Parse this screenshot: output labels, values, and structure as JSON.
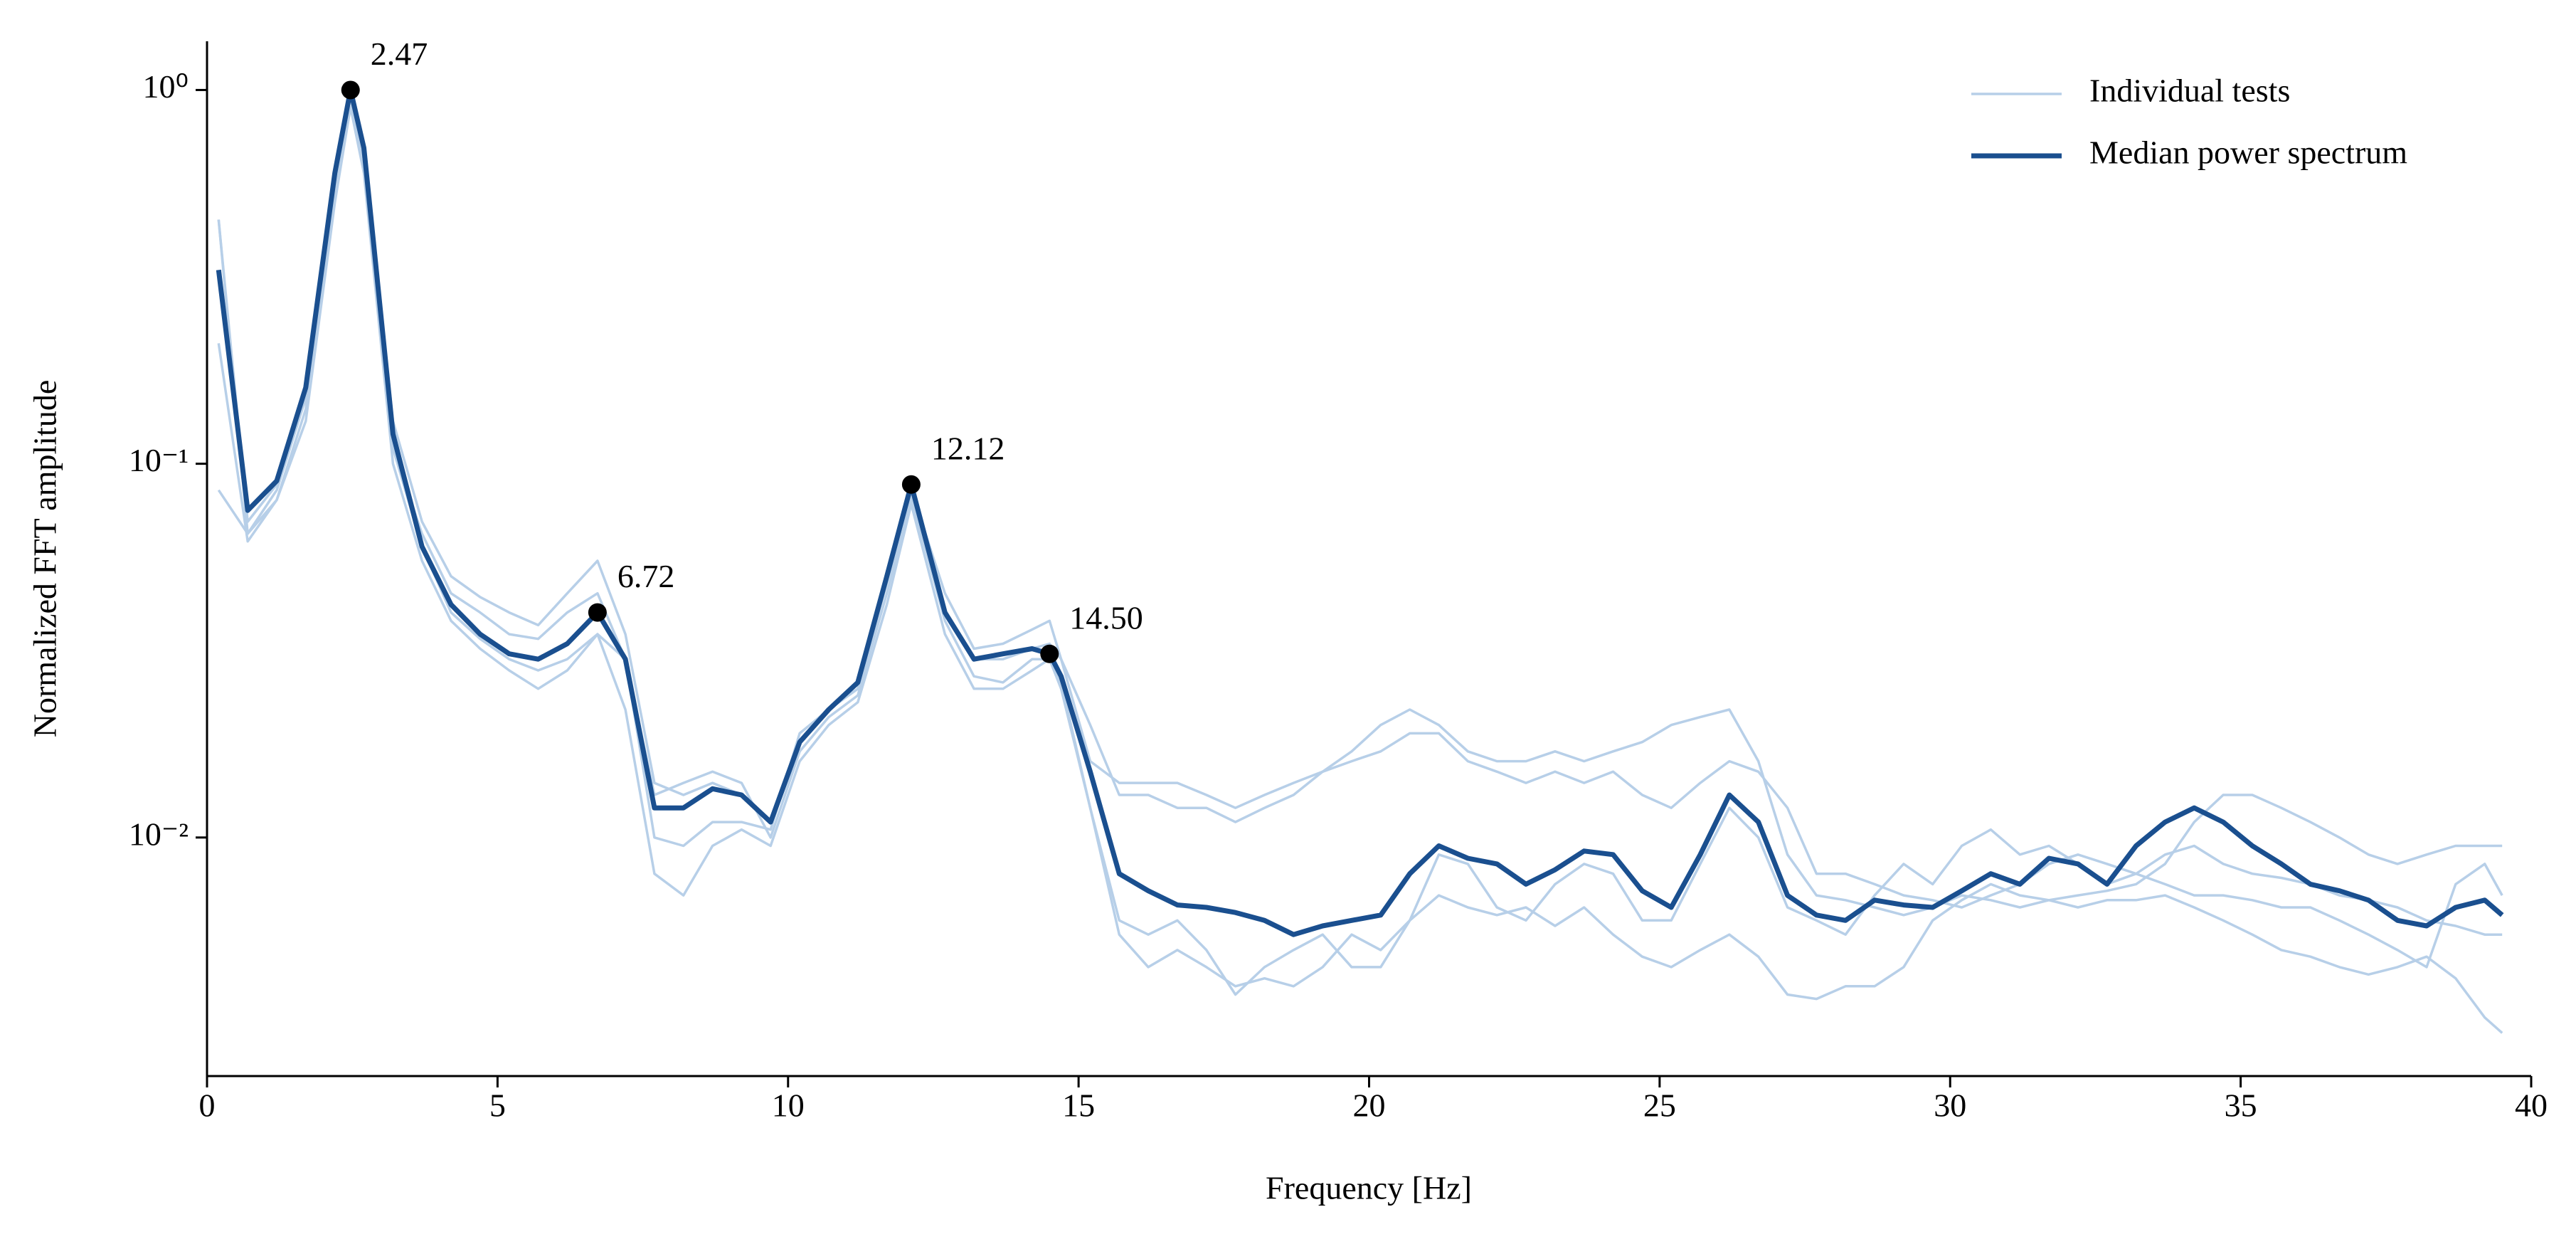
{
  "chart_data": {
    "type": "line",
    "xlabel": "Frequency [Hz]",
    "ylabel": "Normalized FFT amplitude",
    "log_y": true,
    "legend": "upper right",
    "xlim": [
      0,
      40
    ],
    "xticks": [
      0,
      5,
      10,
      15,
      20,
      25,
      30,
      35,
      40
    ],
    "ylim": [
      0.0023,
      1.35
    ],
    "yticks": [
      {
        "value": 1,
        "label": "10⁰"
      },
      {
        "value": 0.1,
        "label": "10⁻¹"
      },
      {
        "value": 0.01,
        "label": "10⁻²"
      }
    ],
    "x": [
      0.2,
      0.7,
      1.2,
      1.7,
      2.2,
      2.47,
      2.7,
      3.2,
      3.7,
      4.2,
      4.7,
      5.2,
      5.7,
      6.2,
      6.72,
      7.2,
      7.7,
      8.2,
      8.7,
      9.2,
      9.7,
      10.2,
      10.7,
      11.2,
      11.7,
      12.12,
      12.7,
      13.2,
      13.7,
      14.2,
      14.5,
      14.7,
      15.2,
      15.7,
      16.2,
      16.7,
      17.2,
      17.7,
      18.2,
      18.7,
      19.2,
      19.7,
      20.2,
      20.7,
      21.2,
      21.7,
      22.2,
      22.7,
      23.2,
      23.7,
      24.2,
      24.7,
      25.2,
      25.7,
      26.2,
      26.7,
      27.2,
      27.7,
      28.2,
      28.7,
      29.2,
      29.7,
      30.2,
      30.7,
      31.2,
      31.7,
      32.2,
      32.7,
      33.2,
      33.7,
      34.2,
      34.7,
      35.2,
      35.7,
      36.2,
      36.7,
      37.2,
      37.7,
      38.2,
      38.7,
      39.2,
      39.5
    ],
    "series": [
      {
        "name": "Individual tests",
        "color": "#b7cfe8",
        "values": [
          [
            0.45,
            0.065,
            0.085,
            0.15,
            0.6,
            1.0,
            0.7,
            0.13,
            0.07,
            0.05,
            0.044,
            0.04,
            0.037,
            0.045,
            0.055,
            0.035,
            0.014,
            0.013,
            0.014,
            0.013,
            0.011,
            0.018,
            0.022,
            0.025,
            0.05,
            0.085,
            0.045,
            0.032,
            0.033,
            0.036,
            0.038,
            0.03,
            0.016,
            0.014,
            0.014,
            0.014,
            0.013,
            0.012,
            0.013,
            0.014,
            0.015,
            0.017,
            0.02,
            0.022,
            0.02,
            0.017,
            0.016,
            0.016,
            0.017,
            0.016,
            0.017,
            0.018,
            0.02,
            0.021,
            0.022,
            0.016,
            0.009,
            0.007,
            0.0068,
            0.0065,
            0.0062,
            0.0065,
            0.007,
            0.0068,
            0.0065,
            0.0068,
            0.007,
            0.0072,
            0.0075,
            0.0085,
            0.011,
            0.013,
            0.013,
            0.012,
            0.011,
            0.01,
            0.009,
            0.0085,
            0.009,
            0.0095,
            0.0095,
            0.0095
          ],
          [
            0.21,
            0.062,
            0.08,
            0.14,
            0.55,
            0.95,
            0.65,
            0.11,
            0.065,
            0.045,
            0.04,
            0.035,
            0.034,
            0.04,
            0.045,
            0.03,
            0.013,
            0.014,
            0.015,
            0.014,
            0.01,
            0.017,
            0.021,
            0.024,
            0.045,
            0.08,
            0.04,
            0.03,
            0.03,
            0.032,
            0.033,
            0.03,
            0.02,
            0.013,
            0.013,
            0.012,
            0.012,
            0.011,
            0.012,
            0.013,
            0.015,
            0.016,
            0.017,
            0.019,
            0.019,
            0.016,
            0.015,
            0.014,
            0.015,
            0.014,
            0.015,
            0.013,
            0.012,
            0.014,
            0.016,
            0.015,
            0.012,
            0.008,
            0.008,
            0.0075,
            0.007,
            0.0068,
            0.0065,
            0.007,
            0.0075,
            0.0085,
            0.009,
            0.0085,
            0.008,
            0.009,
            0.0095,
            0.0085,
            0.008,
            0.0078,
            0.0075,
            0.007,
            0.0068,
            0.0065,
            0.006,
            0.0058,
            0.0055,
            0.0055
          ],
          [
            0.085,
            0.065,
            0.08,
            0.13,
            0.5,
            0.9,
            0.6,
            0.1,
            0.055,
            0.038,
            0.032,
            0.028,
            0.025,
            0.028,
            0.035,
            0.022,
            0.008,
            0.007,
            0.0095,
            0.0105,
            0.0095,
            0.016,
            0.02,
            0.023,
            0.042,
            0.078,
            0.035,
            0.025,
            0.025,
            0.028,
            0.03,
            0.025,
            0.012,
            0.0055,
            0.0045,
            0.005,
            0.0045,
            0.004,
            0.0042,
            0.004,
            0.0045,
            0.0055,
            0.005,
            0.006,
            0.007,
            0.0065,
            0.0062,
            0.0065,
            0.0058,
            0.0065,
            0.0055,
            0.0048,
            0.0045,
            0.005,
            0.0055,
            0.0048,
            0.0038,
            0.0037,
            0.004,
            0.004,
            0.0045,
            0.006,
            0.0068,
            0.0075,
            0.007,
            0.0068,
            0.0065,
            0.0068,
            0.0068,
            0.007,
            0.0065,
            0.006,
            0.0055,
            0.005,
            0.0048,
            0.0045,
            0.0043,
            0.0045,
            0.0048,
            0.0042,
            0.0033,
            0.003
          ],
          [
            0.45,
            0.07,
            0.088,
            0.15,
            0.58,
            0.98,
            0.68,
            0.11,
            0.06,
            0.04,
            0.034,
            0.03,
            0.028,
            0.03,
            0.035,
            0.03,
            0.01,
            0.0095,
            0.011,
            0.011,
            0.0105,
            0.019,
            0.022,
            0.025,
            0.048,
            0.082,
            0.038,
            0.027,
            0.026,
            0.03,
            0.03,
            0.026,
            0.012,
            0.006,
            0.0055,
            0.006,
            0.005,
            0.0038,
            0.0045,
            0.005,
            0.0055,
            0.0045,
            0.0045,
            0.006,
            0.009,
            0.0085,
            0.0065,
            0.006,
            0.0075,
            0.0085,
            0.008,
            0.006,
            0.006,
            0.0085,
            0.012,
            0.01,
            0.0065,
            0.006,
            0.0055,
            0.007,
            0.0085,
            0.0075,
            0.0095,
            0.0105,
            0.009,
            0.0095,
            0.0085,
            0.0075,
            0.008,
            0.0075,
            0.007,
            0.007,
            0.0068,
            0.0065,
            0.0065,
            0.006,
            0.0055,
            0.005,
            0.0045,
            0.0075,
            0.0085,
            0.007
          ]
        ]
      },
      {
        "name": "Median power spectrum",
        "color": "#1a4f8f",
        "values": [
          0.33,
          0.075,
          0.09,
          0.16,
          0.6,
          1.0,
          0.7,
          0.12,
          0.06,
          0.042,
          0.035,
          0.031,
          0.03,
          0.033,
          0.04,
          0.03,
          0.012,
          0.012,
          0.0135,
          0.013,
          0.011,
          0.018,
          0.022,
          0.026,
          0.05,
          0.088,
          0.04,
          0.03,
          0.031,
          0.032,
          0.031,
          0.027,
          0.015,
          0.008,
          0.0072,
          0.0066,
          0.0065,
          0.0063,
          0.006,
          0.0055,
          0.0058,
          0.006,
          0.0062,
          0.008,
          0.0095,
          0.0088,
          0.0085,
          0.0075,
          0.0082,
          0.0092,
          0.009,
          0.0072,
          0.0065,
          0.009,
          0.013,
          0.011,
          0.007,
          0.0062,
          0.006,
          0.0068,
          0.0066,
          0.0065,
          0.0072,
          0.008,
          0.0075,
          0.0088,
          0.0085,
          0.0075,
          0.0095,
          0.011,
          0.012,
          0.011,
          0.0095,
          0.0085,
          0.0075,
          0.0072,
          0.0068,
          0.006,
          0.0058,
          0.0065,
          0.0068,
          0.0062
        ]
      }
    ],
    "peaks": {
      "color": "#000000",
      "x": [
        2.47,
        6.72,
        12.12,
        14.5
      ],
      "values": [
        1.0,
        0.04,
        0.088,
        0.031
      ],
      "labels": [
        "2.47",
        "6.72",
        "12.12",
        "14.50"
      ]
    }
  }
}
